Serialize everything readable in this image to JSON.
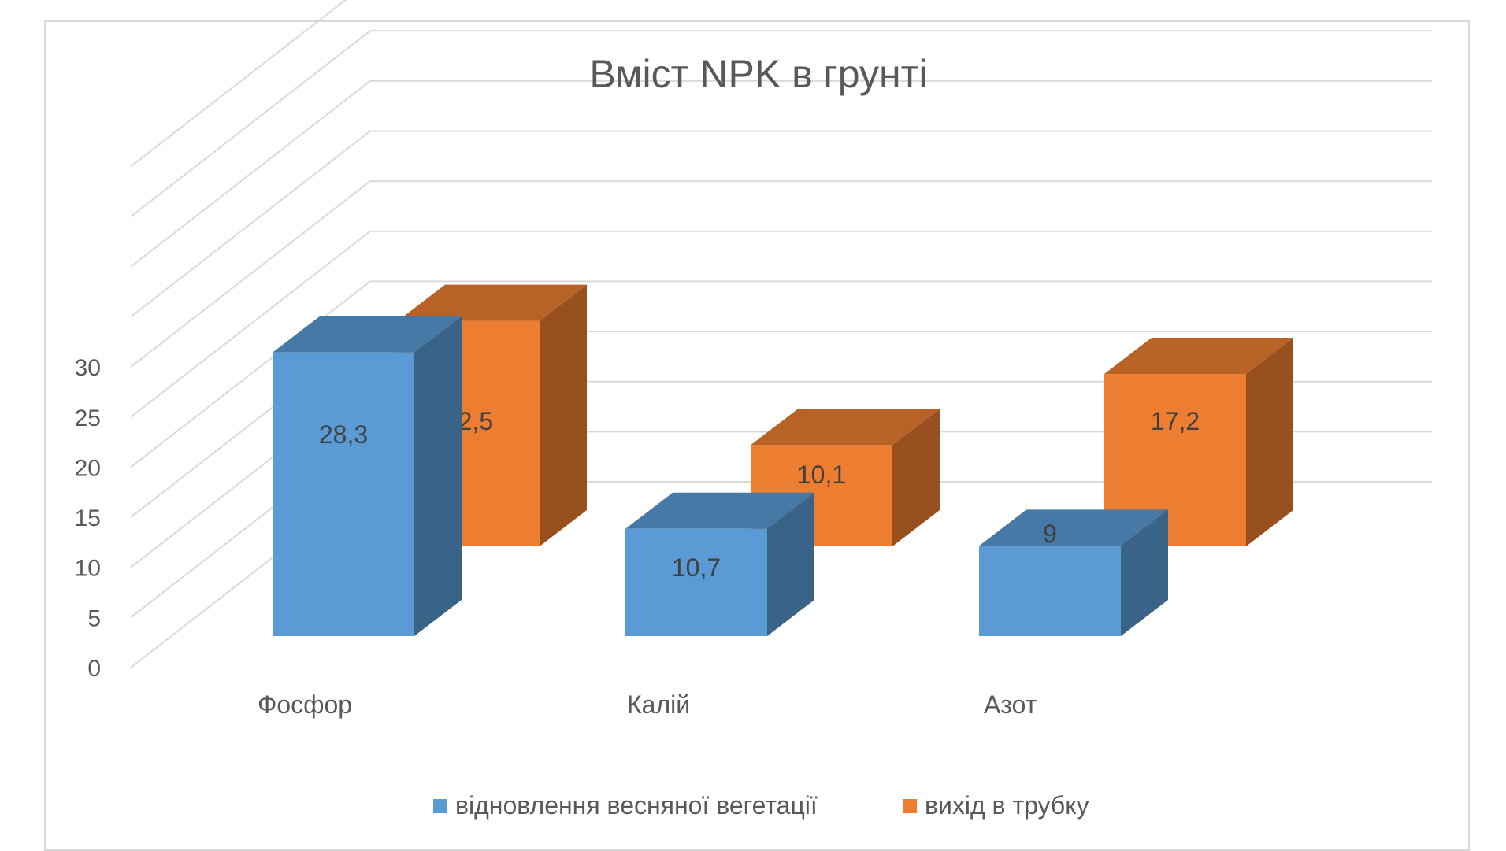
{
  "chart_data": {
    "type": "bar",
    "title": "Вміст NPK в грунті",
    "categories": [
      "Фосфор",
      "Калій",
      "Азот"
    ],
    "series": [
      {
        "name": "відновлення весняної вегетації",
        "values": [
          28.3,
          10.7,
          9
        ],
        "labels": [
          "28,3",
          "10,7",
          "9"
        ],
        "color": "#5b9bd5"
      },
      {
        "name": "вихід в трубку",
        "values": [
          22.5,
          10.1,
          17.2
        ],
        "labels": [
          "22,5",
          "10,1",
          "17,2"
        ],
        "color": "#ed7d31"
      }
    ],
    "ylim": [
      0,
      30
    ],
    "yticks": [
      "0",
      "5",
      "10",
      "15",
      "20",
      "25",
      "30"
    ],
    "grid": true,
    "legend": "bottom",
    "style": "3d-clustered-column"
  }
}
